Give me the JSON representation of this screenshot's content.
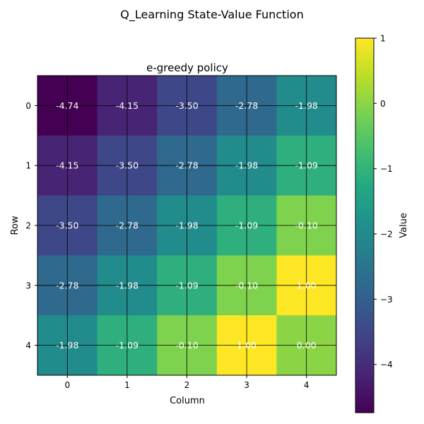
{
  "chart_data": {
    "type": "heatmap",
    "suptitle": "Q_Learning State-Value Function",
    "title": "e-greedy policy",
    "xlabel": "Column",
    "ylabel": "Row",
    "x_categories": [
      "0",
      "1",
      "2",
      "3",
      "4"
    ],
    "y_categories": [
      "0",
      "1",
      "2",
      "3",
      "4"
    ],
    "values": [
      [
        -4.74,
        -4.15,
        -3.5,
        -2.78,
        -1.98
      ],
      [
        -4.15,
        -3.5,
        -2.78,
        -1.98,
        -1.09
      ],
      [
        -3.5,
        -2.78,
        -1.98,
        -1.09,
        -0.1
      ],
      [
        -2.78,
        -1.98,
        -1.09,
        -0.1,
        1.0
      ],
      [
        -1.98,
        -1.09,
        -0.1,
        1.0,
        0.0
      ]
    ],
    "cell_labels": [
      [
        "-4.74",
        "-4.15",
        "-3.50",
        "-2.78",
        "-1.98"
      ],
      [
        "-4.15",
        "-3.50",
        "-2.78",
        "-1.98",
        "-1.09"
      ],
      [
        "-3.50",
        "-2.78",
        "-1.98",
        "-1.09",
        "-0.10"
      ],
      [
        "-2.78",
        "-1.98",
        "-1.09",
        "-0.10",
        "1.00"
      ],
      [
        "-1.98",
        "-1.09",
        "-0.10",
        "1.00",
        "0.00"
      ]
    ],
    "colormap": "viridis",
    "color_range": [
      -4.74,
      1.0
    ],
    "colorbar": {
      "label": "Value",
      "ticks": [
        1,
        0,
        -1,
        -2,
        -3,
        -4
      ],
      "tick_labels": [
        "1",
        "0",
        "−1",
        "−2",
        "−3",
        "−4"
      ]
    },
    "grid": true,
    "grid_color": "#000000"
  }
}
